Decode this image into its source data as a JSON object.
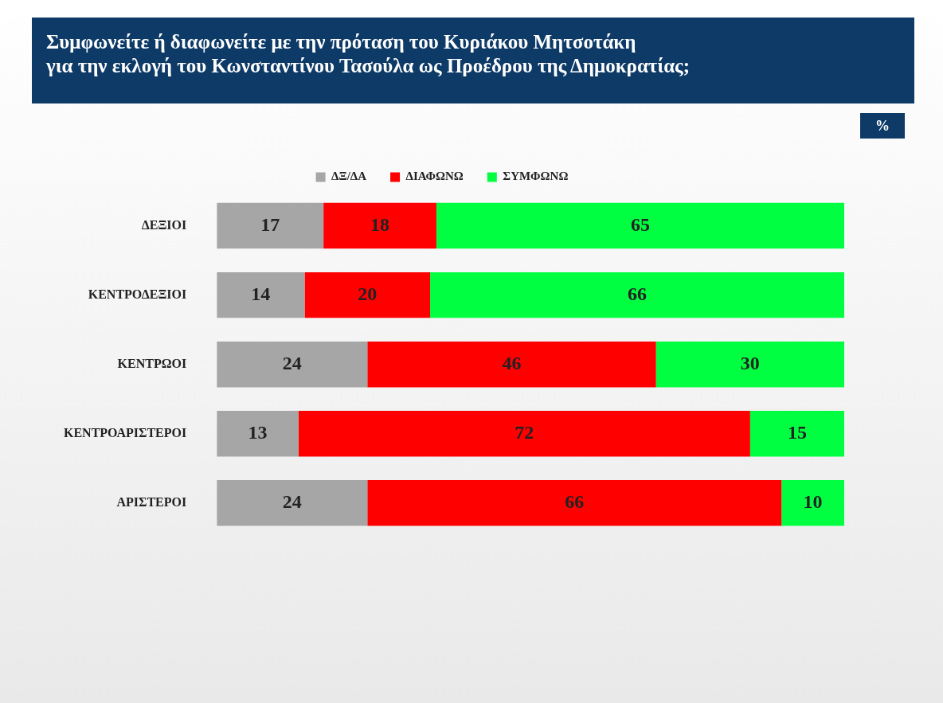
{
  "chart_data": {
    "type": "bar",
    "orientation": "horizontal",
    "stacked": true,
    "title": "Συμφωνείτε ή διαφωνείτε με την πρόταση του Κυριάκου Μητσοτάκη\nγια την εκλογή του Κωνσταντίνου Τασούλα ως Προέδρου της Δημοκρατίας;",
    "annotations": [
      "%"
    ],
    "categories": [
      "ΔΕΞΙΟΙ",
      "ΚΕΝΤΡΟΔΕΞΙΟΙ",
      "ΚΕΝΤΡΩΟΙ",
      "ΚΕΝΤΡΟΑΡΙΣΤΕΡΟΙ",
      "ΑΡΙΣΤΕΡΟΙ"
    ],
    "series": [
      {
        "name": "ΔΞ/ΔΑ",
        "color": "#a6a6a6",
        "values": [
          17,
          14,
          24,
          13,
          24
        ]
      },
      {
        "name": "ΔΙΑΦΩΝΩ",
        "color": "#ff0000",
        "values": [
          18,
          20,
          46,
          72,
          66
        ]
      },
      {
        "name": "ΣΥΜΦΩΝΩ",
        "color": "#00ff40",
        "values": [
          65,
          66,
          30,
          15,
          10
        ]
      }
    ],
    "data_labels": true,
    "legend": "top",
    "tick_labels": "y",
    "grid": false
  }
}
